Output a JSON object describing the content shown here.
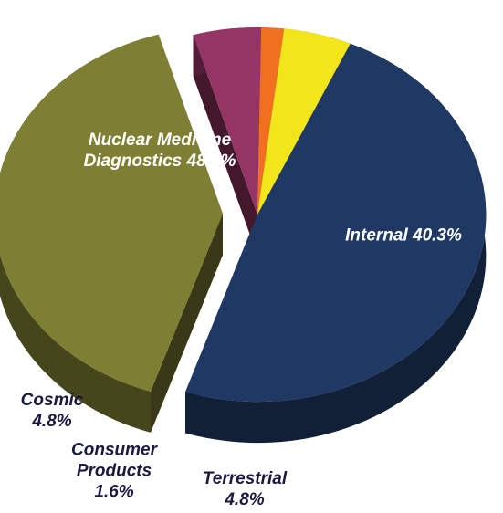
{
  "chart_data": {
    "type": "pie",
    "categories": [
      "Nuclear Medicine Diagnostics",
      "Internal",
      "Terrestrial",
      "Consumer Products",
      "Cosmic"
    ],
    "values": [
      48.4,
      40.3,
      4.8,
      1.6,
      4.8
    ],
    "value_labels": [
      "48.4%",
      "40.3%",
      "4.8%",
      "1.6%",
      "4.8%"
    ],
    "colors": [
      "#1f3864",
      "#7f7f33",
      "#953565",
      "#f07020",
      "#f2e61a"
    ]
  }
}
